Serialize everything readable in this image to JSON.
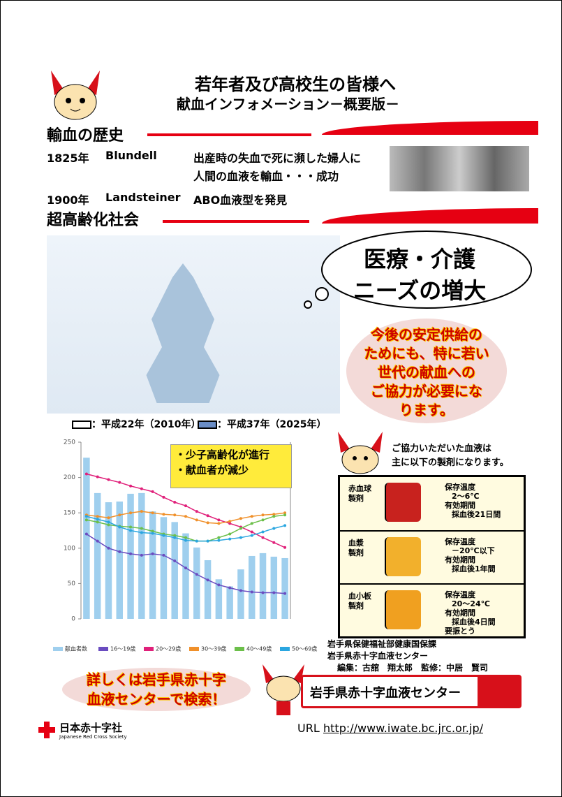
{
  "header": {
    "title": "若年者及び高校生の皆様へ",
    "subtitle": "献血インフォメーション－概要版－"
  },
  "history": {
    "heading": "輸血の歴史",
    "events": [
      {
        "year": "1825年",
        "name": "Blundell",
        "desc": [
          "出産時の失血で死に瀕した婦人に",
          "人間の血液を輸血・・・成功"
        ]
      },
      {
        "year": "1900年",
        "name": "Landsteiner",
        "desc": [
          "ABO血液型を発見"
        ]
      }
    ]
  },
  "aging": {
    "heading": "超高齢化社会",
    "cloud": [
      "医療・介護",
      "ニーズの増大"
    ],
    "appeal": [
      "今後の安定供給の",
      "ためにも、特に若い",
      "世代の献血への",
      "ご協力が必要にな",
      "ります。"
    ],
    "legend": [
      "：平成22年（2010年）",
      "：平成37年（2025年）"
    ]
  },
  "chart_data": {
    "type": "bar",
    "annotations": [
      "・少子高齢化が進行",
      "・献血者が減少"
    ],
    "categories": [
      null,
      null,
      null,
      null,
      null,
      null,
      null,
      null,
      null,
      null,
      null,
      null,
      null,
      null,
      null,
      null,
      null,
      null,
      null
    ],
    "ylim": [
      0,
      250
    ],
    "yticks": [
      0,
      50,
      100,
      150,
      200,
      250
    ],
    "series": [
      {
        "name": "献血者数",
        "color": "#9fcfee",
        "values": [
          228,
          178,
          165,
          166,
          177,
          178,
          152,
          144,
          137,
          121,
          101,
          83,
          56,
          46,
          70,
          89,
          93,
          88,
          86
        ]
      },
      {
        "name": "16～19歳",
        "type": "line",
        "color": "#6a4cc0",
        "values": [
          120,
          110,
          100,
          95,
          92,
          90,
          92,
          90,
          82,
          72,
          63,
          55,
          48,
          44,
          40,
          38,
          37,
          37,
          36
        ]
      },
      {
        "name": "20～29歳",
        "type": "line",
        "color": "#e0207a",
        "values": [
          205,
          201,
          197,
          193,
          188,
          184,
          180,
          172,
          165,
          160,
          152,
          146,
          140,
          135,
          130,
          123,
          115,
          108,
          101
        ]
      },
      {
        "name": "30～39歳",
        "type": "line",
        "color": "#f0902a",
        "values": [
          147,
          145,
          143,
          147,
          150,
          152,
          150,
          148,
          147,
          145,
          140,
          136,
          135,
          138,
          142,
          145,
          147,
          148,
          150
        ]
      },
      {
        "name": "40～49歳",
        "type": "line",
        "color": "#6cbf4a",
        "values": [
          140,
          137,
          133,
          131,
          130,
          128,
          124,
          120,
          118,
          115,
          110,
          110,
          115,
          120,
          128,
          135,
          140,
          145,
          147
        ]
      },
      {
        "name": "50～69歳",
        "type": "line",
        "color": "#2aa6e0",
        "values": [
          145,
          141,
          137,
          130,
          125,
          122,
          121,
          118,
          115,
          111,
          110,
          110,
          111,
          113,
          115,
          118,
          123,
          128,
          132
        ]
      }
    ]
  },
  "products": {
    "intro": [
      "ご協力いただいた血液は",
      "主に以下の製剤になります。"
    ],
    "rows": [
      {
        "name": [
          "赤血球",
          "製剤"
        ],
        "color": "#c8221e",
        "items": [
          "保存温度",
          "2～6℃",
          "有効期間",
          "採血後21日間"
        ]
      },
      {
        "name": [
          "血漿",
          "製剤"
        ],
        "color": "#f2b02c",
        "items": [
          "保存温度",
          "－20℃以下",
          "有効期間",
          "採血後1年間"
        ]
      },
      {
        "name": [
          "血小板",
          "製剤"
        ],
        "color": "#f0a020",
        "items": [
          "保存温度",
          "20～24℃",
          "有効期間",
          "採血後4日間",
          "要振とう"
        ]
      }
    ]
  },
  "credits": [
    "岩手県保健福祉部健康国保課",
    "岩手県赤十字血液センター",
    "編集：古舘　翔太郎　監修：中居　賢司"
  ],
  "search": {
    "callout": [
      "詳しくは岩手県赤十字",
      "血液センターで検索！"
    ],
    "query": "岩手県赤十字血液センター"
  },
  "footer": {
    "org": "日本赤十字社",
    "org_en": "Japanese Red Cross Society",
    "url_label": "URL",
    "url": "http://www.iwate.bc.jrc.or.jp/"
  }
}
